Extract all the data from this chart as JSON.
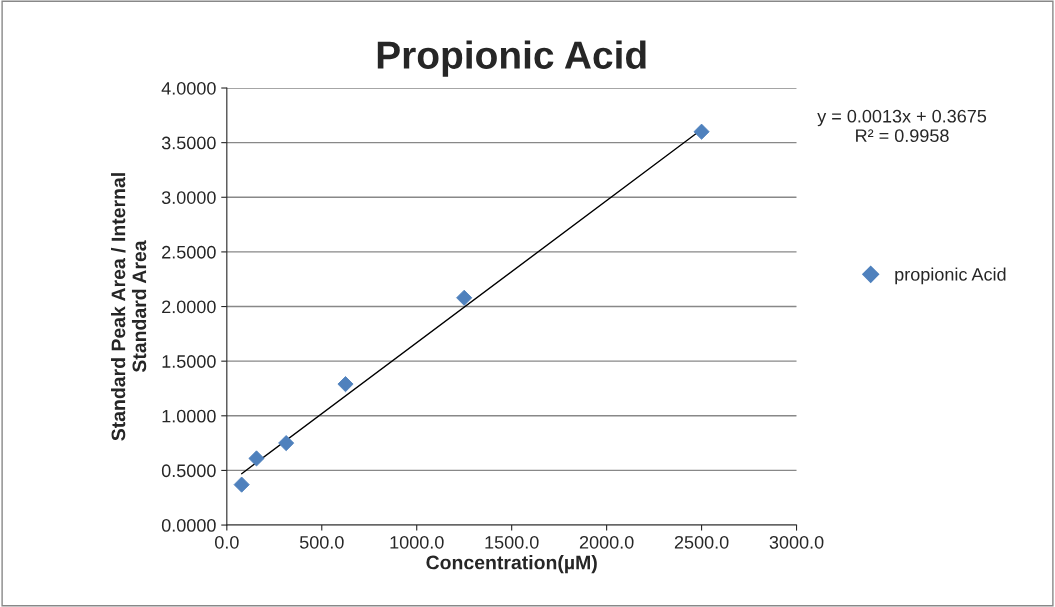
{
  "chart_data": {
    "type": "scatter",
    "title": "Propionic Acid",
    "xlabel": "Concentration(µM)",
    "ylabel": "Standard Peak Area / Internal\nStandard Area",
    "series": [
      {
        "name": "propionic Acid",
        "color": "#4f81bd",
        "x": [
          78.125,
          156.25,
          312.5,
          625,
          1250,
          2500
        ],
        "values": [
          0.37,
          0.61,
          0.75,
          1.29,
          2.08,
          3.6
        ]
      },
      {
        "type": "line",
        "color": "#000000",
        "marker": "none",
        "x": [
          78.125,
          2500
        ],
        "values": [
          0.47,
          3.62
        ]
      }
    ],
    "xlim": [
      0,
      3000
    ],
    "xticks": [
      {
        "value": 0,
        "label": "0.0"
      },
      {
        "value": 500,
        "label": "500.0"
      },
      {
        "value": 1000,
        "label": "1000.0"
      },
      {
        "value": 1500,
        "label": "1500.0"
      },
      {
        "value": 2000,
        "label": "2000.0"
      },
      {
        "value": 2500,
        "label": "2500.0"
      },
      {
        "value": 3000,
        "label": "3000.0"
      }
    ],
    "ylim": [
      0,
      4
    ],
    "yticks": [
      {
        "value": 0,
        "label": "0.0000"
      },
      {
        "value": 0.5,
        "label": "0.5000"
      },
      {
        "value": 1,
        "label": "1.0000"
      },
      {
        "value": 1.5,
        "label": "1.5000"
      },
      {
        "value": 2,
        "label": "2.0000"
      },
      {
        "value": 2.5,
        "label": "2.5000"
      },
      {
        "value": 3,
        "label": "3.0000"
      },
      {
        "value": 3.5,
        "label": "3.5000"
      },
      {
        "value": 4,
        "label": "4.0000"
      }
    ],
    "grid": "y",
    "legend": "right",
    "marker": "diamond",
    "annotations": [
      "y = 0.0013x + 0.3675\nR² = 0.9958"
    ]
  }
}
